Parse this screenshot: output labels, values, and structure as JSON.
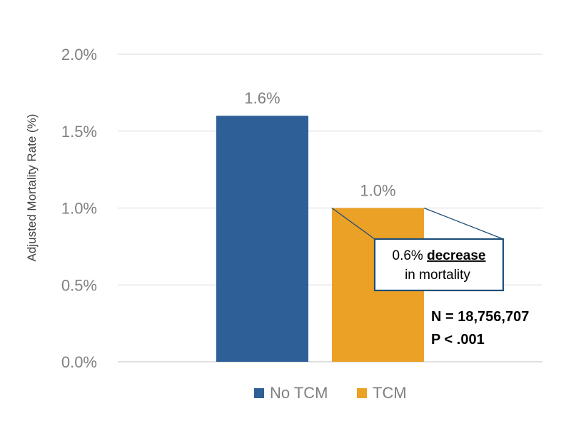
{
  "chart_data": {
    "type": "bar",
    "title": "",
    "xlabel": "",
    "ylabel": "Adjusted Mortality Rate (%)",
    "ylim": [
      0,
      2.0
    ],
    "yticks": [
      "0.0%",
      "0.5%",
      "1.0%",
      "1.5%",
      "2.0%"
    ],
    "ytick_values": [
      0,
      0.5,
      1.0,
      1.5,
      2.0
    ],
    "grid": true,
    "legend_position": "bottom",
    "series": [
      {
        "name": "No TCM",
        "value": 1.6,
        "label": "1.6%",
        "color": "#2e5f96"
      },
      {
        "name": "TCM",
        "value": 1.0,
        "label": "1.0%",
        "color": "#eba126"
      }
    ],
    "annotation": {
      "line1_prefix": "0.6% ",
      "line1_emphasis": "decrease",
      "line2": "in mortality",
      "border_color": "#1f4e79"
    },
    "stats": {
      "n": "N = 18,756,707",
      "p": "P < .001"
    }
  }
}
